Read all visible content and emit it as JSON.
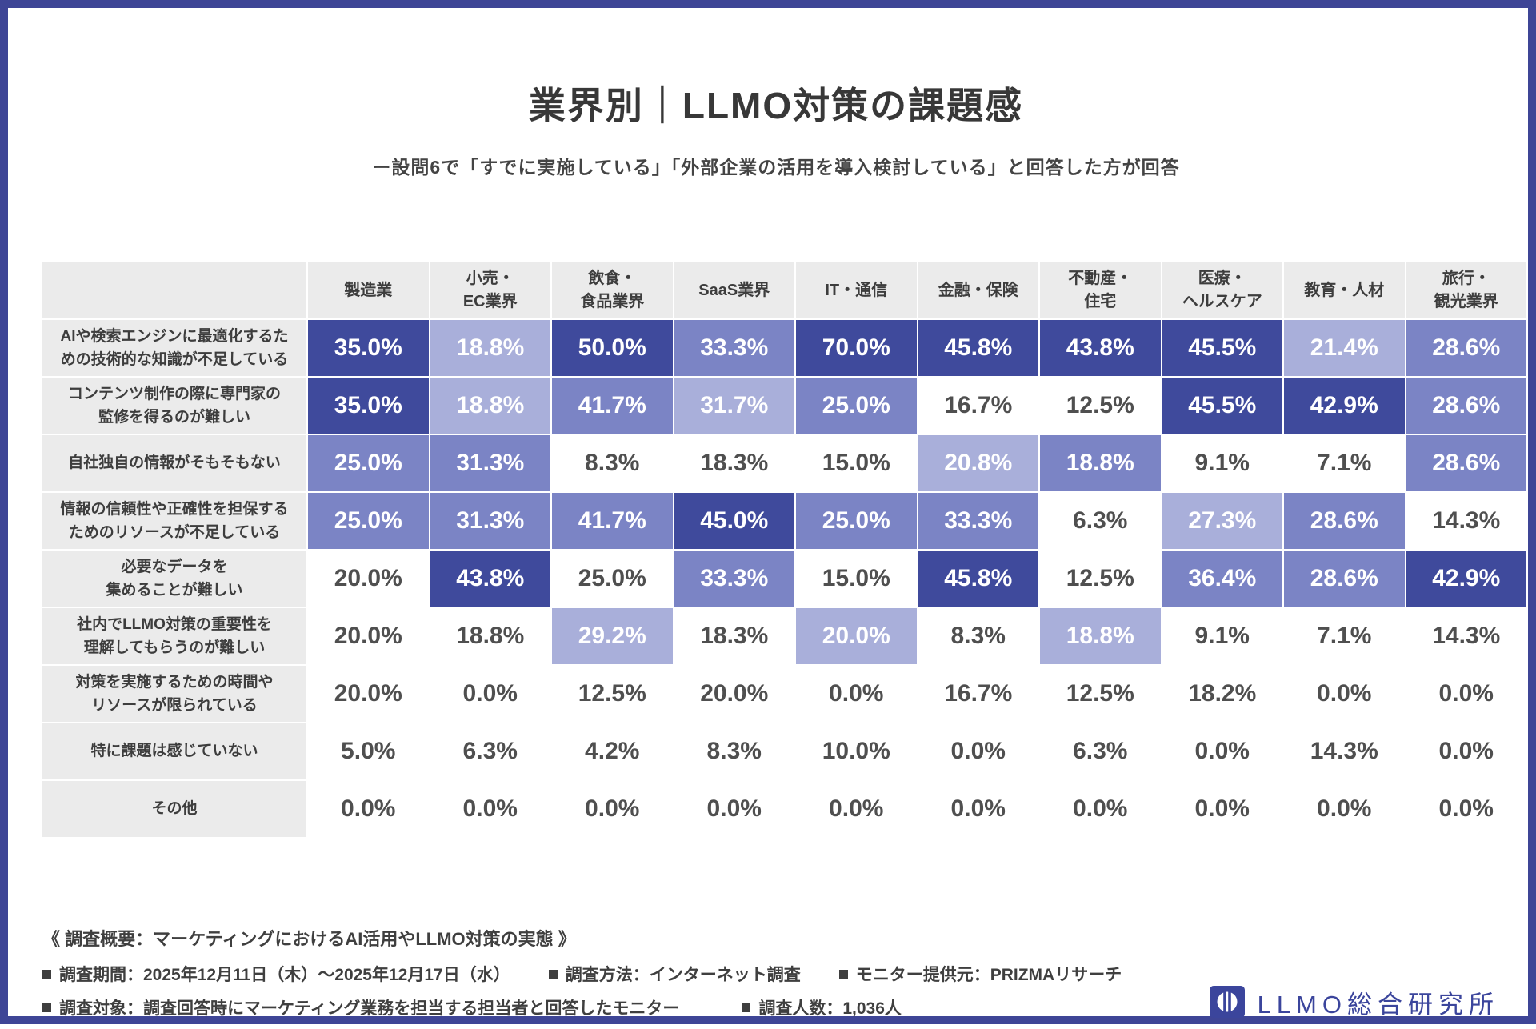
{
  "palette": {
    "none": "#ffffff",
    "light": "#a9afda",
    "medium": "#7b84c5",
    "dark": "#3f4a9c",
    "frame": "#3e4596",
    "label_bg": "#ebebeb",
    "value_text_on_white": "#4f4f4f",
    "value_text_on_color": "#ffffff",
    "logo_color": "#3b459c"
  },
  "header": {
    "title": "業界別｜LLMO対策の課題感",
    "subtitle": "ー設問6で「すでに実施している」「外部企業の活用を導入検討している」と回答した方が回答"
  },
  "chart_data": {
    "type": "heatmap",
    "title": "業界別｜LLMO対策の課題感",
    "unit": "%",
    "columns": [
      "製造業",
      "小売・\nEC業界",
      "飲食・\n食品業界",
      "SaaS業界",
      "IT・通信",
      "金融・保険",
      "不動産・\n住宅",
      "医療・\nヘルスケア",
      "教育・人材",
      "旅行・\n観光業界"
    ],
    "rows": [
      "AIや検索エンジンに最適化するた\nめの技術的な知識が不足している",
      "コンテンツ制作の際に専門家の\n監修を得るのが難しい",
      "自社独自の情報がそもそもない",
      "情報の信頼性や正確性を担保する\nためのリソースが不足している",
      "必要なデータを\n集めることが難しい",
      "社内でLLMO対策の重要性を\n理解してもらうのが難しい",
      "対策を実施するための時間や\nリソースが限られている",
      "特に課題は感じていない",
      "その他"
    ],
    "values": [
      [
        35.0,
        18.8,
        50.0,
        33.3,
        70.0,
        45.8,
        43.8,
        45.5,
        21.4,
        28.6
      ],
      [
        35.0,
        18.8,
        41.7,
        31.7,
        25.0,
        16.7,
        12.5,
        45.5,
        42.9,
        28.6
      ],
      [
        25.0,
        31.3,
        8.3,
        18.3,
        15.0,
        20.8,
        18.8,
        9.1,
        7.1,
        28.6
      ],
      [
        25.0,
        31.3,
        41.7,
        45.0,
        25.0,
        33.3,
        6.3,
        27.3,
        28.6,
        14.3
      ],
      [
        20.0,
        43.8,
        25.0,
        33.3,
        15.0,
        45.8,
        12.5,
        36.4,
        28.6,
        42.9
      ],
      [
        20.0,
        18.8,
        29.2,
        18.3,
        20.0,
        8.3,
        18.8,
        9.1,
        7.1,
        14.3
      ],
      [
        20.0,
        0.0,
        12.5,
        20.0,
        0.0,
        16.7,
        12.5,
        18.2,
        0.0,
        0.0
      ],
      [
        5.0,
        6.3,
        4.2,
        8.3,
        10.0,
        0.0,
        6.3,
        0.0,
        14.3,
        0.0
      ],
      [
        0.0,
        0.0,
        0.0,
        0.0,
        0.0,
        0.0,
        0.0,
        0.0,
        0.0,
        0.0
      ]
    ],
    "shade_levels": [
      "none",
      "light",
      "medium",
      "dark"
    ],
    "shades": [
      [
        3,
        1,
        3,
        2,
        3,
        3,
        3,
        3,
        1,
        2
      ],
      [
        3,
        1,
        2,
        1,
        2,
        0,
        0,
        3,
        3,
        2
      ],
      [
        2,
        2,
        0,
        0,
        0,
        1,
        2,
        0,
        0,
        2
      ],
      [
        2,
        2,
        2,
        3,
        2,
        2,
        0,
        1,
        2,
        0
      ],
      [
        0,
        3,
        0,
        2,
        0,
        3,
        0,
        2,
        2,
        3
      ],
      [
        0,
        0,
        1,
        0,
        1,
        0,
        1,
        0,
        0,
        0
      ],
      [
        0,
        0,
        0,
        0,
        0,
        0,
        0,
        0,
        0,
        0
      ],
      [
        0,
        0,
        0,
        0,
        0,
        0,
        0,
        0,
        0,
        0
      ],
      [
        0,
        0,
        0,
        0,
        0,
        0,
        0,
        0,
        0,
        0
      ]
    ],
    "legend_position": "none",
    "grid": false
  },
  "footer": {
    "overview": "《 調査概要：マーケティングにおけるAI活用やLLMO対策の実態 》",
    "line1": [
      "調査期間：2025年12月11日（木）～2025年12月17日（水）",
      "調査方法：インターネット調査",
      "モニター提供元：PRIZMAリサーチ"
    ],
    "line2": [
      "調査対象：調査回答時にマーケティング業務を担当する担当者と回答したモニター",
      "調査人数：1,036人"
    ]
  },
  "logo": {
    "text": "LLMO総合研究所"
  }
}
